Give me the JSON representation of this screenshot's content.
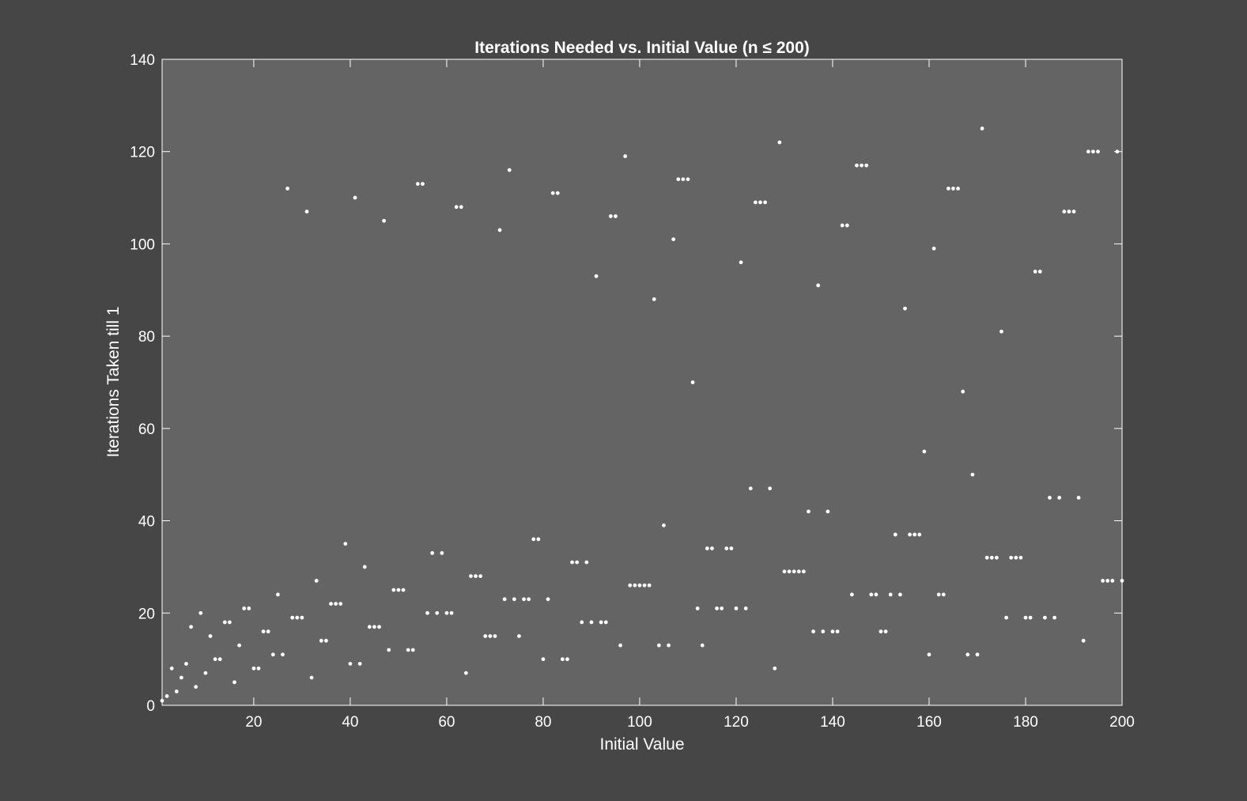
{
  "chart_data": {
    "type": "scatter",
    "title": "Iterations Needed vs. Initial Value (n ≤ 200)",
    "xlabel": "Initial Value",
    "ylabel": "Iterations Taken till 1",
    "xlim": [
      1,
      200
    ],
    "ylim": [
      0,
      140
    ],
    "xticks": [
      20,
      40,
      60,
      80,
      100,
      120,
      140,
      160,
      180,
      200
    ],
    "yticks": [
      0,
      20,
      40,
      60,
      80,
      100,
      120,
      140
    ],
    "grid": false,
    "legend": "none",
    "colors": {
      "background": "#464646",
      "plot_area": "#646464",
      "points": "#ffffff",
      "axes": "#ffffff"
    },
    "series": [
      {
        "x": [
          1,
          2,
          3,
          4,
          5,
          6,
          7,
          8,
          9,
          10,
          11,
          12,
          13,
          14,
          15,
          16,
          17,
          18,
          19,
          20,
          21,
          22,
          23,
          24,
          25,
          26,
          27,
          28,
          29,
          30,
          31,
          32,
          33,
          34,
          35,
          36,
          37,
          38,
          39,
          40,
          41,
          42,
          43,
          44,
          45,
          46,
          47,
          48,
          49,
          50,
          51,
          52,
          53,
          54,
          55,
          56,
          57,
          58,
          59,
          60,
          61,
          62,
          63,
          64,
          65,
          66,
          67,
          68,
          69,
          70,
          71,
          72,
          73,
          74,
          75,
          76,
          77,
          78,
          79,
          80,
          81,
          82,
          83,
          84,
          85,
          86,
          87,
          88,
          89,
          90,
          91,
          92,
          93,
          94,
          95,
          96,
          97,
          98,
          99,
          100,
          101,
          102,
          103,
          104,
          105,
          106,
          107,
          108,
          109,
          110,
          111,
          112,
          113,
          114,
          115,
          116,
          117,
          118,
          119,
          120,
          121,
          122,
          123,
          124,
          125,
          126,
          127,
          128,
          129,
          130,
          131,
          132,
          133,
          134,
          135,
          136,
          137,
          138,
          139,
          140,
          141,
          142,
          143,
          144,
          145,
          146,
          147,
          148,
          149,
          150,
          151,
          152,
          153,
          154,
          155,
          156,
          157,
          158,
          159,
          160,
          161,
          162,
          163,
          164,
          165,
          166,
          167,
          168,
          169,
          170,
          171,
          172,
          173,
          174,
          175,
          176,
          177,
          178,
          179,
          180,
          181,
          182,
          183,
          184,
          185,
          186,
          187,
          188,
          189,
          190,
          191,
          192,
          193,
          194,
          195,
          196,
          197,
          198,
          199,
          200
        ],
        "y": [
          1,
          2,
          8,
          3,
          6,
          9,
          17,
          4,
          20,
          7,
          15,
          10,
          10,
          18,
          18,
          5,
          13,
          21,
          21,
          8,
          8,
          16,
          16,
          11,
          24,
          11,
          112,
          19,
          19,
          19,
          107,
          6,
          27,
          14,
          14,
          22,
          22,
          22,
          35,
          9,
          110,
          9,
          30,
          17,
          17,
          17,
          105,
          12,
          25,
          25,
          25,
          12,
          12,
          113,
          113,
          20,
          33,
          20,
          33,
          20,
          20,
          108,
          108,
          7,
          28,
          28,
          28,
          15,
          15,
          15,
          103,
          23,
          116,
          23,
          15,
          23,
          23,
          36,
          36,
          10,
          23,
          111,
          111,
          10,
          10,
          31,
          31,
          18,
          31,
          18,
          93,
          18,
          18,
          106,
          106,
          13,
          119,
          26,
          26,
          26,
          26,
          26,
          88,
          13,
          39,
          13,
          101,
          114,
          114,
          114,
          70,
          21,
          13,
          34,
          34,
          21,
          21,
          34,
          34,
          21,
          96,
          21,
          47,
          109,
          109,
          109,
          47,
          8,
          122,
          29,
          29,
          29,
          29,
          29,
          42,
          16,
          91,
          16,
          42,
          16,
          16,
          104,
          104,
          24,
          117,
          117,
          117,
          24,
          24,
          16,
          16,
          24,
          37,
          24,
          86,
          37,
          37,
          37,
          55,
          11,
          99,
          24,
          24,
          112,
          112,
          112,
          68,
          11,
          50,
          11,
          125,
          32,
          32,
          32,
          81,
          19,
          32,
          32,
          32,
          19,
          19,
          94,
          94,
          19,
          45,
          19,
          45,
          107,
          107,
          107,
          45,
          14,
          120,
          120,
          120,
          27,
          27,
          27,
          120,
          27
        ]
      }
    ]
  }
}
